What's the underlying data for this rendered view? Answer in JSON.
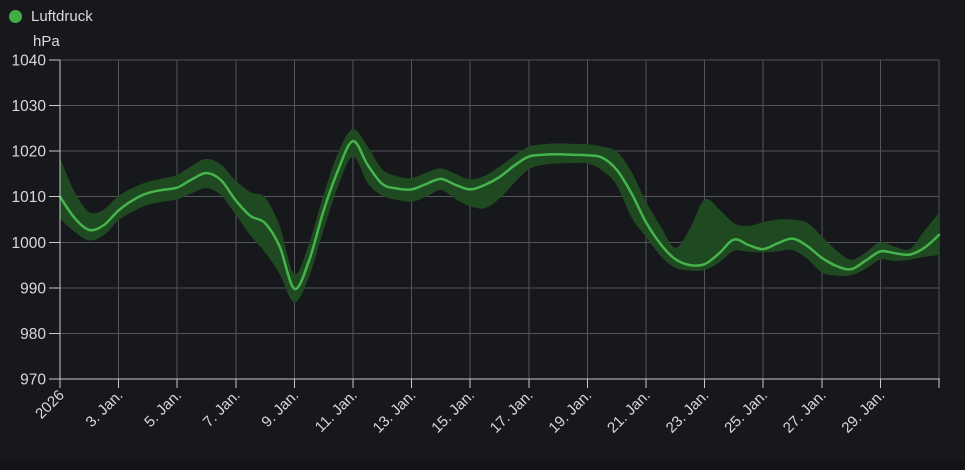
{
  "legend": {
    "series_label": "Luftdruck",
    "unit_label": "hPa"
  },
  "colors": {
    "background": "#17181c",
    "bottom_strip": "#121318",
    "grid": "#53555b",
    "axis": "#c8c9cb",
    "text": "#d8d9da",
    "line_green": "#46b44c",
    "band_green": "#1f4a21",
    "legend_dot_green": "#3fae45"
  },
  "chart_data": {
    "type": "line",
    "title": "Luftdruck",
    "ylabel": "hPa",
    "x_axis_description": "Days of January 2026, ticks every 2 days",
    "legend_position": "top-left",
    "grid": true,
    "ylim": [
      970,
      1040
    ],
    "xlim_days": [
      1,
      31
    ],
    "y_ticks": [
      970,
      980,
      990,
      1000,
      1010,
      1020,
      1030,
      1040
    ],
    "x_ticks": [
      {
        "day": 1,
        "label": "2026"
      },
      {
        "day": 3,
        "label": "3. Jan."
      },
      {
        "day": 5,
        "label": "5. Jan."
      },
      {
        "day": 7,
        "label": "7. Jan."
      },
      {
        "day": 9,
        "label": "9. Jan."
      },
      {
        "day": 11,
        "label": "11. Jan."
      },
      {
        "day": 13,
        "label": "13. Jan."
      },
      {
        "day": 15,
        "label": "15. Jan."
      },
      {
        "day": 17,
        "label": "17. Jan."
      },
      {
        "day": 19,
        "label": "19. Jan."
      },
      {
        "day": 21,
        "label": "21. Jan."
      },
      {
        "day": 23,
        "label": "23. Jan."
      },
      {
        "day": 25,
        "label": "25. Jan."
      },
      {
        "day": 27,
        "label": "27. Jan."
      },
      {
        "day": 29,
        "label": "29. Jan."
      },
      {
        "day": 31,
        "label": ""
      }
    ],
    "series": [
      {
        "name": "Luftdruck",
        "unit": "hPa",
        "color": "#46b44c",
        "band_color": "#1f4a21",
        "band_meaning": "min-max range around mean forecast",
        "days": [
          1,
          1.5,
          2,
          2.5,
          3,
          3.5,
          4,
          4.5,
          5,
          5.5,
          6,
          6.5,
          7,
          7.5,
          8,
          8.5,
          9,
          9.5,
          10,
          10.5,
          11,
          11.5,
          12,
          12.5,
          13,
          13.5,
          14,
          14.5,
          15,
          15.5,
          16,
          16.5,
          17,
          17.5,
          18,
          18.5,
          19,
          19.5,
          20,
          20.5,
          21,
          21.5,
          22,
          22.5,
          23,
          23.5,
          24,
          24.5,
          25,
          25.5,
          26,
          26.5,
          27,
          27.5,
          28,
          28.5,
          29,
          29.5,
          30,
          30.5,
          31
        ],
        "mean": [
          1010.0,
          1005.3,
          1002.7,
          1003.8,
          1007.0,
          1009.3,
          1010.8,
          1011.5,
          1012.0,
          1013.8,
          1015.2,
          1013.6,
          1009.2,
          1005.8,
          1004.2,
          999.0,
          989.8,
          996.0,
          1007.0,
          1016.0,
          1022.2,
          1017.0,
          1012.8,
          1011.8,
          1011.6,
          1012.8,
          1013.9,
          1012.6,
          1011.6,
          1012.6,
          1014.3,
          1016.8,
          1018.8,
          1019.2,
          1019.3,
          1019.2,
          1019.1,
          1018.6,
          1015.9,
          1010.8,
          1004.4,
          999.6,
          996.3,
          995.0,
          995.2,
          997.6,
          1000.6,
          999.4,
          998.5,
          999.8,
          1000.8,
          999.2,
          996.6,
          994.8,
          994.1,
          996.0,
          998.0,
          997.6,
          997.3,
          998.8,
          1001.6
        ],
        "upper": [
          1018.5,
          1011.0,
          1006.6,
          1007.2,
          1010.2,
          1012.0,
          1013.3,
          1014.0,
          1014.8,
          1016.8,
          1018.3,
          1017.0,
          1013.5,
          1011.0,
          1009.8,
          1003.5,
          993.0,
          999.8,
          1010.5,
          1019.8,
          1024.8,
          1021.0,
          1016.0,
          1014.5,
          1014.1,
          1015.3,
          1016.2,
          1015.0,
          1013.8,
          1014.6,
          1016.6,
          1019.0,
          1021.0,
          1021.5,
          1021.7,
          1021.6,
          1021.5,
          1021.0,
          1019.9,
          1015.5,
          1008.9,
          1003.5,
          998.8,
          1003.0,
          1009.4,
          1007.2,
          1004.2,
          1003.6,
          1004.4,
          1005.0,
          1005.0,
          1004.3,
          1001.3,
          998.2,
          996.2,
          997.8,
          1000.0,
          999.0,
          998.5,
          1002.5,
          1006.5
        ],
        "lower": [
          1005.2,
          1002.3,
          1000.4,
          1001.6,
          1004.8,
          1006.8,
          1008.2,
          1008.9,
          1009.4,
          1010.8,
          1011.9,
          1010.3,
          1006.0,
          1001.5,
          997.8,
          993.0,
          986.8,
          992.5,
          1002.8,
          1012.5,
          1018.8,
          1013.0,
          1010.2,
          1009.3,
          1008.9,
          1010.0,
          1011.5,
          1009.5,
          1007.9,
          1007.5,
          1009.6,
          1013.0,
          1016.0,
          1017.0,
          1017.3,
          1017.4,
          1017.3,
          1015.8,
          1012.5,
          1005.5,
          1001.2,
          997.0,
          994.4,
          993.8,
          993.9,
          995.6,
          998.1,
          997.9,
          997.8,
          998.0,
          998.3,
          996.4,
          993.4,
          992.7,
          992.8,
          994.2,
          996.2,
          995.9,
          996.2,
          996.8,
          997.2
        ]
      }
    ]
  }
}
